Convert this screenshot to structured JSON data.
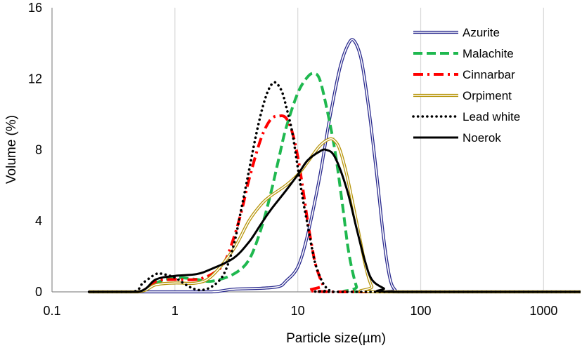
{
  "chart_data": {
    "type": "line",
    "title": "",
    "xlabel": "Particle size(µm)",
    "ylabel": "Volume (%)",
    "xscale": "log",
    "xlim": [
      0.1,
      2000
    ],
    "ylim": [
      0,
      16
    ],
    "x_ticks": [
      0.1,
      1,
      10,
      100,
      1000
    ],
    "x_tick_labels": [
      "0.1",
      "1",
      "10",
      "100",
      "1000"
    ],
    "y_ticks": [
      0,
      4,
      8,
      12,
      16
    ],
    "y_tick_labels": [
      "0",
      "4",
      "8",
      "12",
      "16"
    ],
    "grid": "vertical",
    "legend_position": "top-right",
    "series": [
      {
        "name": "Azurite",
        "color": "#2B2B8F",
        "style": "double",
        "points": [
          [
            0.2,
            0
          ],
          [
            1,
            0
          ],
          [
            2,
            0
          ],
          [
            3,
            0.15
          ],
          [
            5,
            0.2
          ],
          [
            7,
            0.3
          ],
          [
            8,
            0.6
          ],
          [
            10,
            1.4
          ],
          [
            12,
            3.2
          ],
          [
            15,
            6.4
          ],
          [
            18,
            9.6
          ],
          [
            22,
            12.6
          ],
          [
            26,
            14.0
          ],
          [
            29,
            14.1
          ],
          [
            33,
            13.0
          ],
          [
            38,
            10.2
          ],
          [
            44,
            6.5
          ],
          [
            50,
            3.0
          ],
          [
            56,
            0.8
          ],
          [
            62,
            0.1
          ],
          [
            70,
            0
          ],
          [
            2000,
            0
          ]
        ]
      },
      {
        "name": "Malachite",
        "color": "#1FB84F",
        "style": "dashed",
        "points": [
          [
            0.2,
            0
          ],
          [
            0.5,
            0
          ],
          [
            0.7,
            0.5
          ],
          [
            1,
            0.8
          ],
          [
            1.5,
            0.7
          ],
          [
            2,
            0.6
          ],
          [
            3,
            1.0
          ],
          [
            4,
            1.8
          ],
          [
            5,
            3.5
          ],
          [
            6,
            5.5
          ],
          [
            7,
            7.5
          ],
          [
            8,
            9.2
          ],
          [
            10,
            11.2
          ],
          [
            12,
            12.1
          ],
          [
            13.5,
            12.3
          ],
          [
            15,
            12.0
          ],
          [
            17,
            10.5
          ],
          [
            20,
            8.0
          ],
          [
            23,
            5.0
          ],
          [
            26,
            2.2
          ],
          [
            30,
            0.3
          ],
          [
            33,
            0
          ],
          [
            2000,
            0
          ]
        ]
      },
      {
        "name": "Cinnarbar",
        "color": "#FF0000",
        "style": "dashdot",
        "points": [
          [
            0.2,
            0
          ],
          [
            0.5,
            0
          ],
          [
            0.7,
            0.6
          ],
          [
            1,
            0.7
          ],
          [
            1.5,
            0.7
          ],
          [
            2,
            1.0
          ],
          [
            2.5,
            1.6
          ],
          [
            3,
            3.0
          ],
          [
            3.5,
            4.6
          ],
          [
            4,
            6.3
          ],
          [
            5,
            8.6
          ],
          [
            6,
            9.7
          ],
          [
            7,
            9.9
          ],
          [
            8,
            9.8
          ],
          [
            9,
            9.0
          ],
          [
            10,
            7.6
          ],
          [
            11,
            5.8
          ],
          [
            12,
            4.0
          ],
          [
            13,
            2.6
          ],
          [
            14,
            1.5
          ],
          [
            16,
            0.4
          ],
          [
            18,
            0
          ],
          [
            2000,
            0
          ]
        ]
      },
      {
        "name": "Orpiment",
        "color": "#B8960C",
        "style": "double",
        "points": [
          [
            0.2,
            0
          ],
          [
            0.5,
            0
          ],
          [
            0.7,
            0.4
          ],
          [
            1,
            0.5
          ],
          [
            1.5,
            0.5
          ],
          [
            2,
            0.9
          ],
          [
            3,
            2.4
          ],
          [
            4,
            4.0
          ],
          [
            5,
            4.9
          ],
          [
            6,
            5.4
          ],
          [
            8,
            6.0
          ],
          [
            10,
            6.6
          ],
          [
            12,
            7.3
          ],
          [
            15,
            8.2
          ],
          [
            18,
            8.6
          ],
          [
            20,
            8.5
          ],
          [
            22,
            8.0
          ],
          [
            25,
            6.6
          ],
          [
            28,
            5.0
          ],
          [
            32,
            3.0
          ],
          [
            36,
            1.3
          ],
          [
            40,
            0.3
          ],
          [
            44,
            0
          ],
          [
            2000,
            0
          ]
        ]
      },
      {
        "name": "Lead white",
        "color": "#000000",
        "style": "dotted",
        "points": [
          [
            0.2,
            0
          ],
          [
            0.45,
            0
          ],
          [
            0.55,
            0.5
          ],
          [
            0.7,
            1.0
          ],
          [
            0.8,
            1.0
          ],
          [
            1,
            0.8
          ],
          [
            1.3,
            0.3
          ],
          [
            1.6,
            0.1
          ],
          [
            2,
            0.3
          ],
          [
            2.5,
            1.0
          ],
          [
            3,
            2.6
          ],
          [
            3.5,
            4.8
          ],
          [
            4,
            6.8
          ],
          [
            4.5,
            8.6
          ],
          [
            5,
            10.0
          ],
          [
            5.5,
            11.0
          ],
          [
            6,
            11.6
          ],
          [
            6.5,
            11.8
          ],
          [
            7,
            11.6
          ],
          [
            7.5,
            11.2
          ],
          [
            8,
            10.5
          ],
          [
            9,
            9.0
          ],
          [
            10,
            7.0
          ],
          [
            11,
            5.2
          ],
          [
            12,
            3.8
          ],
          [
            13,
            2.5
          ],
          [
            14,
            1.5
          ],
          [
            16,
            0.5
          ],
          [
            18,
            0.1
          ],
          [
            20,
            0
          ],
          [
            2000,
            0
          ]
        ]
      },
      {
        "name": "Noerok",
        "color": "#000000",
        "style": "solid",
        "points": [
          [
            0.2,
            0
          ],
          [
            0.5,
            0
          ],
          [
            0.7,
            0.7
          ],
          [
            1,
            0.9
          ],
          [
            1.5,
            1.0
          ],
          [
            2,
            1.3
          ],
          [
            3,
            1.9
          ],
          [
            4,
            2.8
          ],
          [
            5,
            3.8
          ],
          [
            6,
            4.6
          ],
          [
            8,
            5.7
          ],
          [
            10,
            6.6
          ],
          [
            12,
            7.4
          ],
          [
            15,
            7.9
          ],
          [
            17,
            8.0
          ],
          [
            20,
            7.6
          ],
          [
            25,
            5.8
          ],
          [
            30,
            3.6
          ],
          [
            35,
            1.8
          ],
          [
            40,
            0.7
          ],
          [
            50,
            0.2
          ],
          [
            60,
            0
          ],
          [
            2000,
            0
          ]
        ]
      }
    ]
  }
}
